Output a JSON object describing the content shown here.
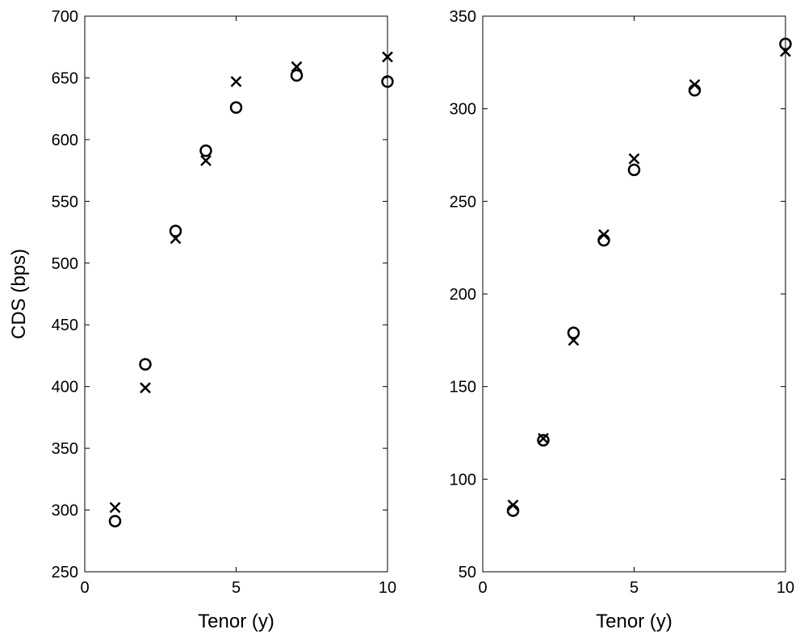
{
  "chart_data": [
    {
      "type": "scatter",
      "title": "",
      "xlabel": "Tenor (y)",
      "ylabel": "CDS (bps)",
      "xlim": [
        0,
        10
      ],
      "ylim": [
        250,
        700
      ],
      "xticks": [
        0,
        5,
        10
      ],
      "yticks": [
        250,
        300,
        350,
        400,
        450,
        500,
        550,
        600,
        650,
        700
      ],
      "grid": false,
      "series": [
        {
          "marker": "x",
          "x": [
            1,
            2,
            3,
            4,
            5,
            7,
            10
          ],
          "y": [
            302,
            399,
            520,
            583,
            647,
            659,
            667
          ]
        },
        {
          "marker": "o",
          "x": [
            1,
            2,
            3,
            4,
            5,
            7,
            10
          ],
          "y": [
            291,
            418,
            526,
            591,
            626,
            652,
            647
          ]
        }
      ]
    },
    {
      "type": "scatter",
      "title": "",
      "xlabel": "Tenor (y)",
      "ylabel": "",
      "xlim": [
        0,
        10
      ],
      "ylim": [
        50,
        350
      ],
      "xticks": [
        0,
        5,
        10
      ],
      "yticks": [
        50,
        100,
        150,
        200,
        250,
        300,
        350
      ],
      "grid": false,
      "series": [
        {
          "marker": "x",
          "x": [
            1,
            2,
            3,
            4,
            5,
            7,
            10
          ],
          "y": [
            86,
            122,
            175,
            232,
            273,
            313,
            331
          ]
        },
        {
          "marker": "o",
          "x": [
            1,
            2,
            3,
            4,
            5,
            7,
            10
          ],
          "y": [
            83,
            121,
            179,
            229,
            267,
            310,
            335
          ]
        }
      ]
    }
  ]
}
